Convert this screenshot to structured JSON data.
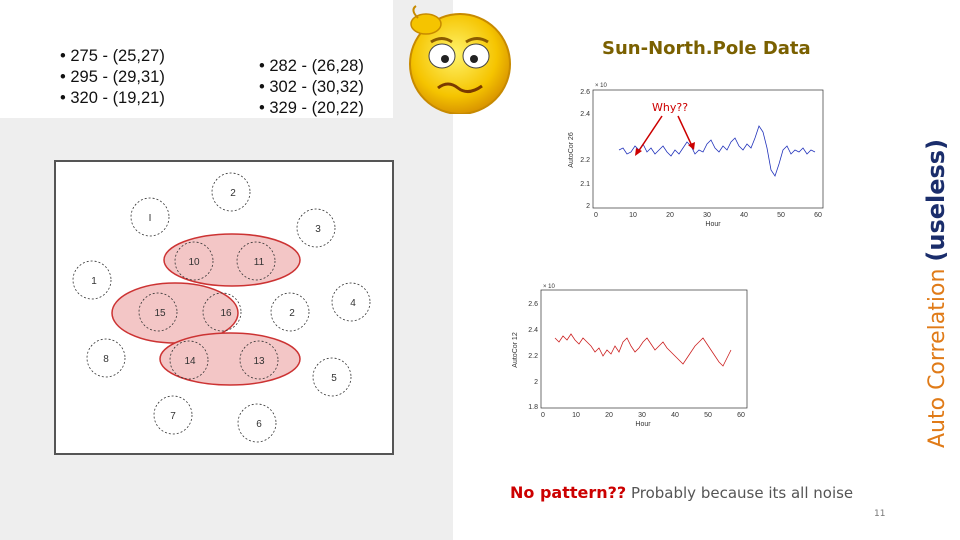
{
  "bullets_left": [
    "275 - (25,27)",
    "295 - (29,31)",
    "320 - (19,21)"
  ],
  "bullets_right": [
    "282 - (26,28)",
    "302 - (30,32)",
    "329 - (20,22)"
  ],
  "diagram": {
    "nodes": [
      "I",
      "2",
      "3",
      "10",
      "11",
      "1",
      "15",
      "16",
      "2",
      "4",
      "8",
      "14",
      "13",
      "5",
      "7",
      "6"
    ]
  },
  "chart_title": "Sun-North.Pole Data",
  "annotation": "Why??",
  "chart1": {
    "ylabel": "AutoCor 26",
    "xlabel": "Hour",
    "exp": "× 10",
    "yticks": [
      "2.6",
      "2.4",
      "2.2",
      "2.1",
      "2"
    ],
    "xticks": [
      "0",
      "10",
      "20",
      "30",
      "40",
      "50",
      "60"
    ]
  },
  "chart2": {
    "ylabel": "AutoCor 12",
    "xlabel": "Hour",
    "exp": "× 10",
    "yticks": [
      "2.6",
      "2.4",
      "2.2",
      "2",
      "1.8"
    ],
    "xticks": [
      "0",
      "10",
      "20",
      "30",
      "40",
      "50",
      "60"
    ]
  },
  "vertical_label": {
    "main": "Auto Correlation",
    "emph": "(useless)"
  },
  "bottom": {
    "highlight": "No pattern??",
    "rest": "Probably because its all noise"
  },
  "page_number": "11",
  "colors": {
    "accent_orange": "#e07b18",
    "title_gold": "#7a6000",
    "emph_navy": "#1a2d6b",
    "alert_red": "#cc0000",
    "series1": "#2233bb",
    "series2": "#cc2222"
  }
}
